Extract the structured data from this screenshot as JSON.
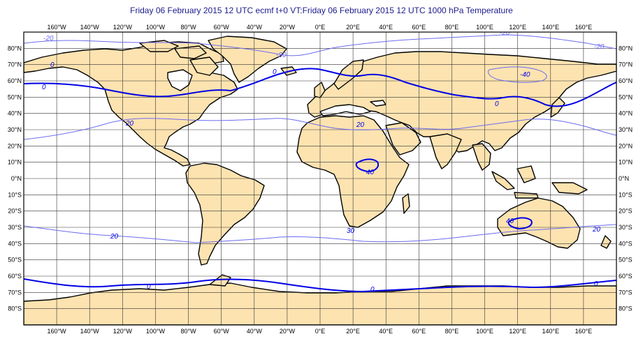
{
  "title": "Friday 06 February 2015 12 UTC ecmf t+0 VT:Friday 06 February 2015 12 UTC 1000 hPa Temperature",
  "colors": {
    "land": "#fde3b0",
    "ocean": "#ffffff",
    "coast": "#000000",
    "grid": "#333333",
    "contour_zero": "#0000e6",
    "contour_other": "#6b6bf0",
    "title": "#1a1a8c"
  },
  "longitude_labels": [
    "160°W",
    "140°W",
    "120°W",
    "100°W",
    "80°W",
    "60°W",
    "40°W",
    "20°W",
    "0°E",
    "20°E",
    "40°E",
    "60°E",
    "80°E",
    "100°E",
    "120°E",
    "140°E",
    "160°E"
  ],
  "latitude_labels": [
    "80°N",
    "70°N",
    "60°N",
    "50°N",
    "40°N",
    "30°N",
    "20°N",
    "10°N",
    "0°N",
    "10°S",
    "20°S",
    "30°S",
    "40°S",
    "50°S",
    "60°S",
    "70°S",
    "80°S"
  ],
  "contour_labels": {
    "neg20": "-20",
    "zero": "0",
    "twenty": "20",
    "neg40": "-40",
    "forty": "40",
    "thirty": "30"
  },
  "map_extent": {
    "lon": [
      -180,
      180
    ],
    "lat": [
      -90,
      90
    ]
  }
}
